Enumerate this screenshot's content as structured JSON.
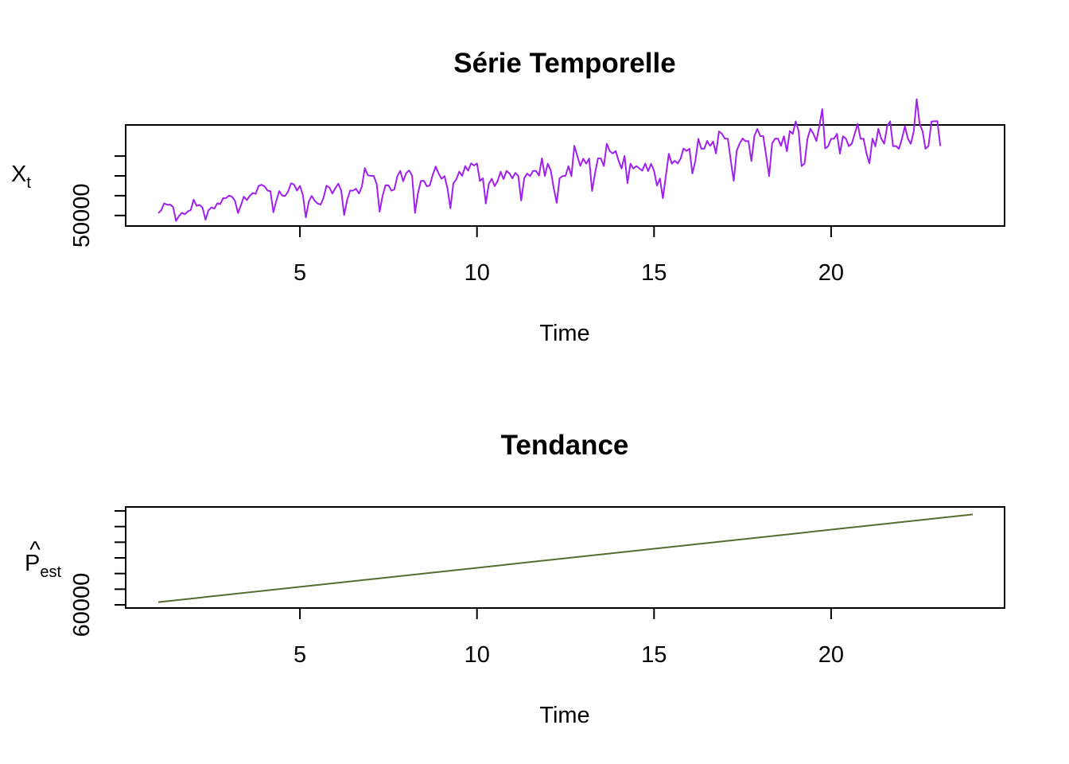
{
  "chart_data": [
    {
      "type": "line",
      "title": "Série Temporelle",
      "xlabel": "Time",
      "ylabel_main": "X",
      "ylabel_sub": "t",
      "xlim": [
        1,
        24
      ],
      "ylim": [
        48000,
        84000
      ],
      "xticks": [
        5,
        10,
        15,
        20
      ],
      "yticks": [
        50000,
        58000,
        66000,
        74000
      ],
      "ytick_labels": [
        "50000"
      ],
      "color": "#a020f0",
      "series": [
        {
          "name": "X_t",
          "start": 1,
          "frequency": 12,
          "values": [
            50958,
            52120,
            54903,
            54332,
            54403,
            53512,
            47819,
            49816,
            51085,
            50497,
            51656,
            52181,
            56394,
            53893,
            54296,
            53063,
            48305,
            52090,
            53231,
            52821,
            54918,
            54629,
            57015,
            57020,
            58061,
            57540,
            55866,
            51002,
            54128,
            57618,
            56201,
            57885,
            59101,
            58749,
            61952,
            62394,
            61804,
            60050,
            59813,
            51312,
            55938,
            59867,
            58021,
            57908,
            59662,
            63016,
            62484,
            60043,
            61961,
            58304,
            49183,
            55616,
            57904,
            56010,
            54855,
            54393,
            57208,
            62013,
            61309,
            58908,
            61043,
            62834,
            60045,
            50184,
            56206,
            60099,
            60033,
            60817,
            58872,
            61761,
            69176,
            66213,
            66024,
            65992,
            62734,
            51532,
            57941,
            62244,
            62171,
            60016,
            60541,
            65839,
            68038,
            63826,
            67116,
            68196,
            66129,
            51065,
            59010,
            63953,
            64042,
            61813,
            62111,
            66317,
            69751,
            66918,
            64843,
            65912,
            60914,
            52962,
            63023,
            64633,
            67706,
            66010,
            69952,
            68115,
            71059,
            70216,
            71011,
            63945,
            65036,
            54843,
            62710,
            64837,
            61839,
            63963,
            67712,
            64712,
            67998,
            67007,
            64988,
            67193,
            66022,
            56024,
            65062,
            66943,
            65948,
            68035,
            67981,
            66082,
            73104,
            65940,
            70961,
            68193,
            61071,
            55109,
            65057,
            65939,
            66029,
            69906,
            65919,
            78150,
            74039,
            70037,
            72938,
            70941,
            72993,
            59914,
            67028,
            73097,
            72999,
            70001,
            78984,
            75953,
            75037,
            76019,
            72019,
            69002,
            74044,
            63052,
            70939,
            68954,
            69976,
            69019,
            68116,
            70951,
            67941,
            70890,
            68037,
            62031,
            64947,
            56963,
            65962,
            74897,
            70966,
            72097,
            71027,
            72960,
            77064,
            76040,
            76964,
            66955,
            72011,
            80992,
            76956,
            76951,
            80113,
            78099,
            79890,
            75049,
            83972,
            83040,
            81000,
            81057,
            72112,
            63959,
            76098,
            79098,
            81084,
            80012,
            80034,
            71963,
            82058,
            84961,
            82059,
            82044,
            74061,
            65929,
            79091,
            80996,
            81040,
            78110,
            82013,
            75945,
            84097,
            82950,
            88005,
            84100,
            69955,
            70990,
            80946,
            85046,
            82989,
            80087,
            86002,
            92953,
            77050,
            77957,
            80976,
            81026,
            82994,
            74952,
            81973,
            81025,
            77986,
            78948,
            83040,
            86984,
            80952,
            81005,
            75010,
            71065,
            81043,
            77935,
            85028,
            80990,
            79016,
            85997,
            88035,
            77995,
            78048,
            76942,
            81007,
            86052,
            81073,
            78906,
            83962,
            96986,
            87060,
            84017,
            76965,
            78063,
            87917,
            88055,
            88075,
            78055
          ]
        }
      ]
    },
    {
      "type": "line",
      "title": "Tendance",
      "xlabel": "Time",
      "ylabel_main": "P",
      "ylabel_sub": "est",
      "ylabel_accent": "^",
      "xlim": [
        1,
        24
      ],
      "ylim": [
        60000,
        84000
      ],
      "xticks": [
        5,
        10,
        15,
        20
      ],
      "yticks": [
        60000,
        64000,
        68000,
        72000,
        76000,
        80000,
        84000
      ],
      "ytick_labels": [
        "60000"
      ],
      "color": "#556b2f",
      "series": [
        {
          "name": "P_est",
          "x": [
            1,
            24
          ],
          "values": [
            60700,
            83100
          ]
        }
      ]
    }
  ]
}
